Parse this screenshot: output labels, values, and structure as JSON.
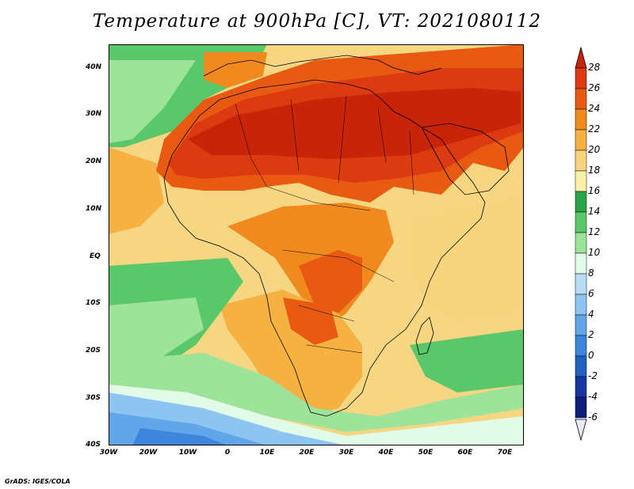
{
  "title": "Temperature at 900hPa [C], VT: 2021080112",
  "footer": "GrADS: IGES/COLA",
  "lat_ticks": [
    "40N",
    "30N",
    "20N",
    "10N",
    "EQ",
    "10S",
    "20S",
    "30S",
    "40S"
  ],
  "lon_ticks": [
    "30W",
    "20W",
    "10W",
    "0",
    "10E",
    "20E",
    "30E",
    "40E",
    "50E",
    "60E",
    "70E"
  ],
  "legend": {
    "labels": [
      "28",
      "26",
      "24",
      "22",
      "20",
      "18",
      "16",
      "14",
      "12",
      "10",
      "8",
      "6",
      "4",
      "2",
      "0",
      "-2",
      "-4",
      "-6"
    ],
    "colors": {
      "above_28": "#c8240a",
      "26_28": "#dc3a10",
      "24_26": "#e85a12",
      "22_24": "#f08a1e",
      "20_22": "#f5b243",
      "18_20": "#f7d57e",
      "16_18": "#f9efa8",
      "14_16": "#2aa44a",
      "12_14": "#5ac86a",
      "10_12": "#9ee39a",
      "8_10": "#e2fbe8",
      "6_8": "#b8dcf6",
      "4_6": "#8ec4f2",
      "2_4": "#62a6ea",
      "0_2": "#3e86dc",
      "-2_0": "#2060c0",
      "-4_-2": "#1636a0",
      "-6_-4": "#0f1f78",
      "below_-6": "#e6e8fb"
    }
  },
  "map": {
    "region": "Africa",
    "lon_range": [
      "30W",
      "75E"
    ],
    "lat_range": [
      "40S",
      "45N"
    ],
    "variable": "Temperature at 900hPa",
    "unit": "C"
  }
}
